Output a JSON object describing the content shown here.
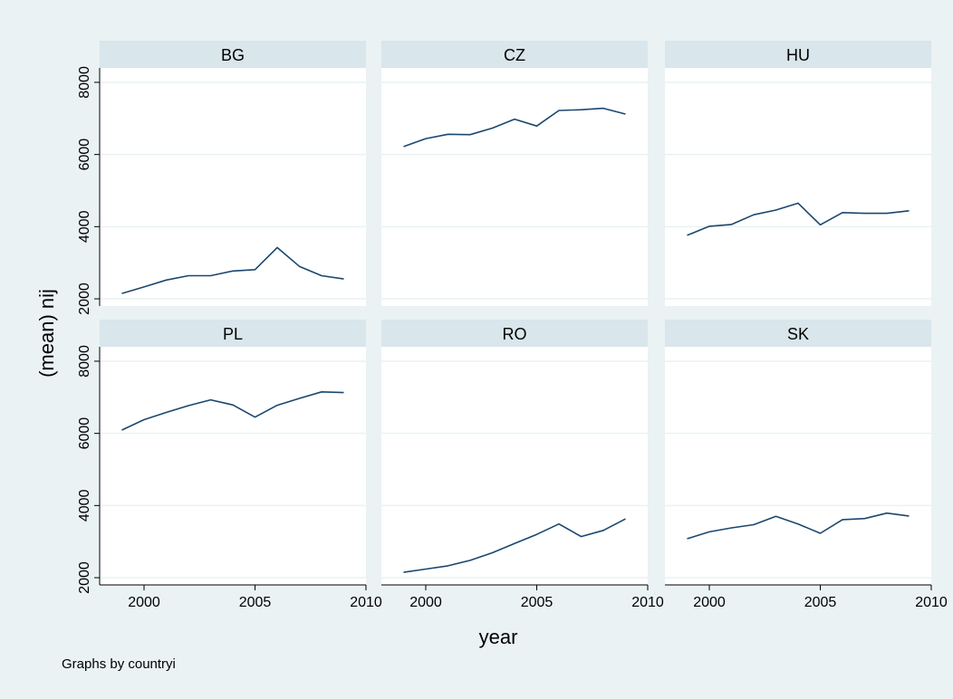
{
  "chart_data": {
    "type": "line",
    "layout": "small-multiples",
    "xlabel": "year",
    "ylabel": "(mean) nij",
    "note": "Graphs by countryi",
    "xlim": [
      1998,
      2010
    ],
    "ylim": [
      1800,
      8400
    ],
    "xticks": [
      2000,
      2005,
      2010
    ],
    "yticks": [
      2000,
      4000,
      6000,
      8000
    ],
    "x": [
      1999,
      2000,
      2001,
      2002,
      2003,
      2004,
      2005,
      2006,
      2007,
      2008,
      2009
    ],
    "grid": true,
    "colors": {
      "outer_background": "#eaf2f3",
      "plot_background": "#ffffff",
      "panel_header": "#d9e6eb",
      "line": "#1a476f",
      "grid": "#eaf2f3"
    },
    "series": [
      {
        "name": "BG",
        "values": [
          2150,
          2330,
          2520,
          2640,
          2640,
          2770,
          2810,
          3420,
          2900,
          2640,
          2550
        ]
      },
      {
        "name": "CZ",
        "values": [
          6220,
          6440,
          6560,
          6550,
          6730,
          6980,
          6790,
          7220,
          7240,
          7280,
          7120
        ]
      },
      {
        "name": "HU",
        "values": [
          3760,
          4010,
          4060,
          4330,
          4460,
          4650,
          4050,
          4390,
          4370,
          4370,
          4440
        ]
      },
      {
        "name": "PL",
        "values": [
          6090,
          6380,
          6580,
          6770,
          6930,
          6790,
          6450,
          6780,
          6970,
          7150,
          7130
        ]
      },
      {
        "name": "RO",
        "values": [
          2150,
          2240,
          2330,
          2480,
          2690,
          2950,
          3200,
          3490,
          3140,
          3310,
          3630
        ]
      },
      {
        "name": "SK",
        "values": [
          3080,
          3270,
          3380,
          3470,
          3700,
          3490,
          3230,
          3610,
          3640,
          3790,
          3710
        ]
      }
    ]
  }
}
